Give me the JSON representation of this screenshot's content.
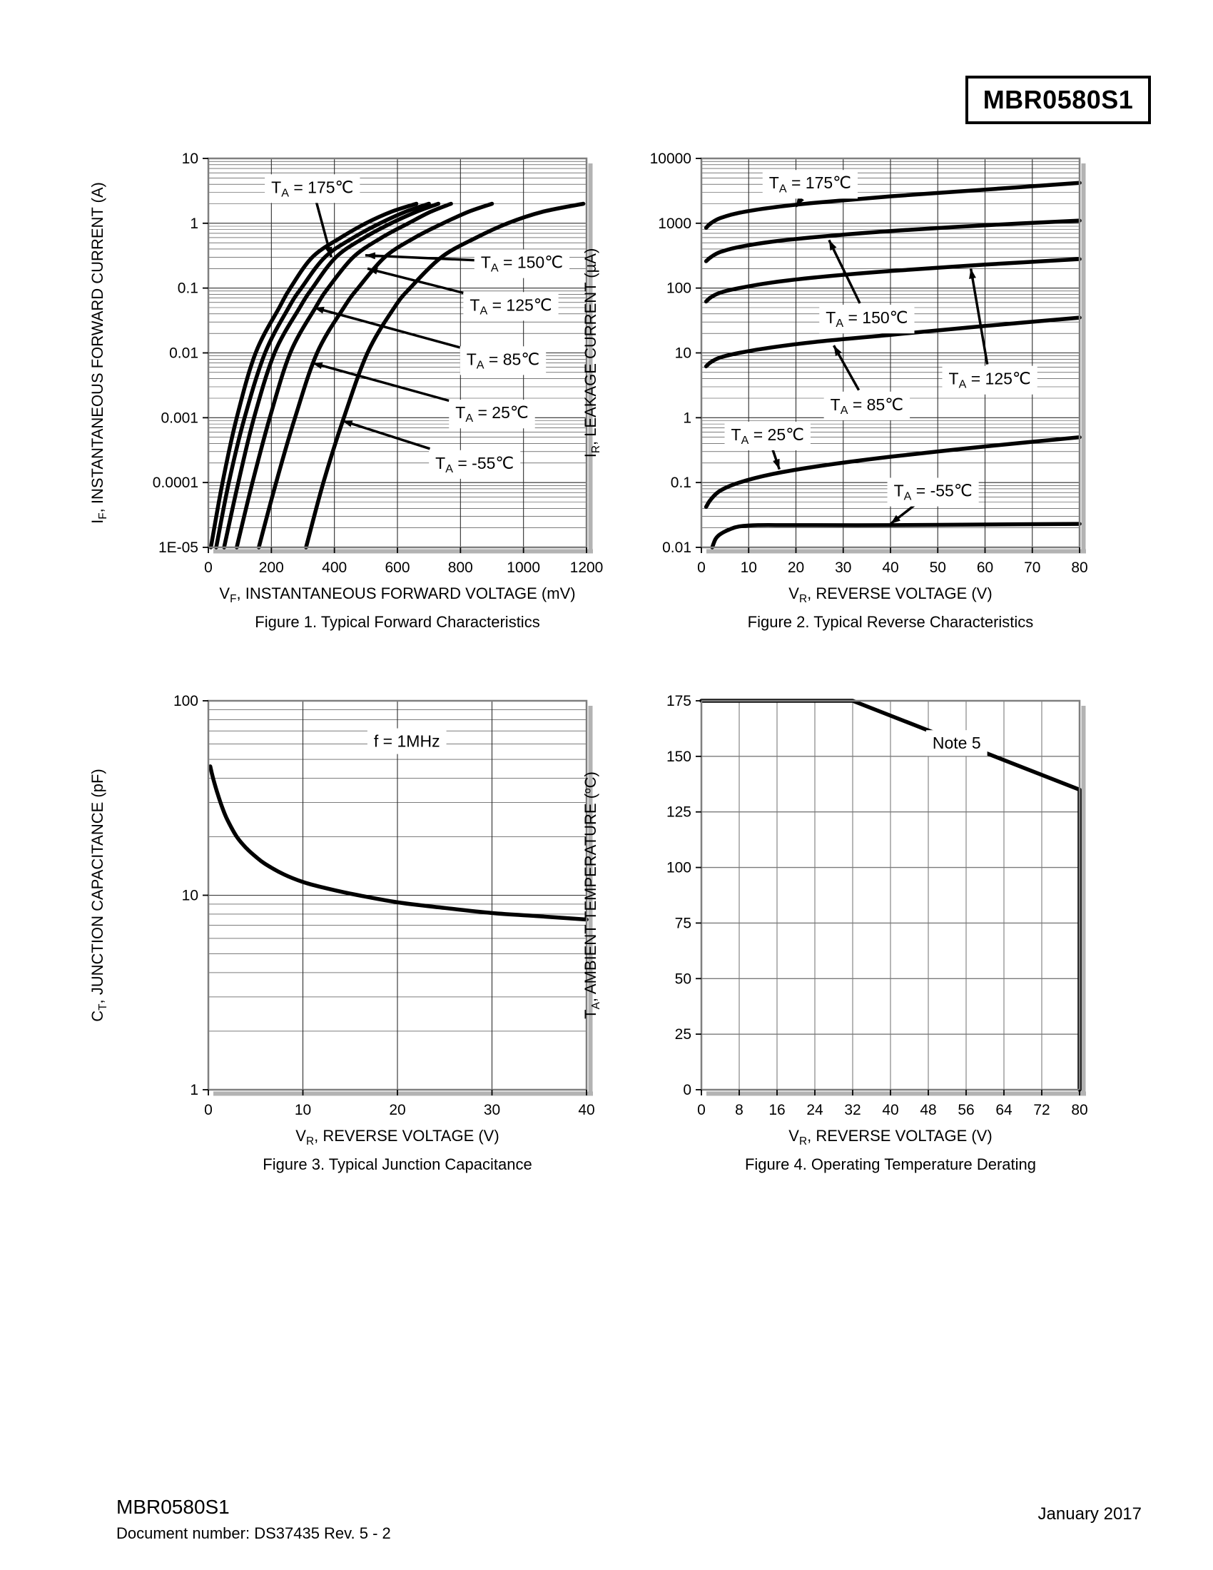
{
  "page": {
    "title_box": "MBR0580S1",
    "footer": {
      "part_number": "MBR0580S1",
      "document_line": "Document number: DS37435  Rev. 5 - 2",
      "date": "January 2017"
    }
  },
  "chart_data": [
    {
      "id": "figure-1",
      "type": "line",
      "title": "Figure 1. Typical Forward Characteristics",
      "xlabel": "V~F~, INSTANTANEOUS FORWARD VOLTAGE (mV)",
      "ylabel": "I~F~, INSTANTANEOUS FORWARD CURRENT (A)",
      "x": {
        "scale": "linear",
        "min": 0,
        "max": 1200,
        "ticks": [
          0,
          200,
          400,
          600,
          800,
          1000,
          1200
        ]
      },
      "y": {
        "scale": "log",
        "min": 1e-05,
        "max": 10,
        "tick_labels": [
          "10",
          "1",
          "0.1",
          "0.01",
          "0.001",
          "0.0001",
          "1E-05"
        ]
      },
      "grid": {
        "color": "#2e2e2e",
        "style": "log-minor"
      },
      "series": [
        {
          "name": "TA = 175C",
          "points": [
            [
              8,
              1e-05
            ],
            [
              45,
              0.0001
            ],
            [
              90,
              0.001
            ],
            [
              150,
              0.01
            ],
            [
              225,
              0.05
            ],
            [
              260,
              0.1
            ],
            [
              330,
              0.3
            ],
            [
              420,
              0.6
            ],
            [
              500,
              1
            ],
            [
              580,
              1.5
            ],
            [
              660,
              2
            ]
          ]
        },
        {
          "name": "TA = 150C",
          "points": [
            [
              25,
              1e-05
            ],
            [
              65,
              0.0001
            ],
            [
              115,
              0.001
            ],
            [
              180,
              0.01
            ],
            [
              255,
              0.05
            ],
            [
              295,
              0.1
            ],
            [
              370,
              0.3
            ],
            [
              460,
              0.6
            ],
            [
              545,
              1
            ],
            [
              625,
              1.5
            ],
            [
              700,
              2
            ]
          ]
        },
        {
          "name": "TA = 125C",
          "points": [
            [
              50,
              1e-05
            ],
            [
              95,
              0.0001
            ],
            [
              145,
              0.001
            ],
            [
              210,
              0.01
            ],
            [
              290,
              0.05
            ],
            [
              330,
              0.1
            ],
            [
              405,
              0.3
            ],
            [
              495,
              0.6
            ],
            [
              580,
              1
            ],
            [
              660,
              1.5
            ],
            [
              730,
              2
            ]
          ]
        },
        {
          "name": "TA = 85C",
          "points": [
            [
              90,
              1e-05
            ],
            [
              140,
              0.0001
            ],
            [
              195,
              0.001
            ],
            [
              260,
              0.01
            ],
            [
              340,
              0.05
            ],
            [
              380,
              0.1
            ],
            [
              460,
              0.3
            ],
            [
              550,
              0.6
            ],
            [
              635,
              1
            ],
            [
              705,
              1.5
            ],
            [
              770,
              2
            ]
          ]
        },
        {
          "name": "TA = 25C",
          "points": [
            [
              160,
              1e-05
            ],
            [
              215,
              0.0001
            ],
            [
              275,
              0.001
            ],
            [
              345,
              0.01
            ],
            [
              430,
              0.05
            ],
            [
              475,
              0.1
            ],
            [
              560,
              0.3
            ],
            [
              655,
              0.6
            ],
            [
              745,
              1
            ],
            [
              825,
              1.5
            ],
            [
              900,
              2
            ]
          ]
        },
        {
          "name": "TA = -55C",
          "points": [
            [
              310,
              1e-05
            ],
            [
              365,
              0.0001
            ],
            [
              430,
              0.001
            ],
            [
              505,
              0.01
            ],
            [
              590,
              0.05
            ],
            [
              640,
              0.1
            ],
            [
              740,
              0.3
            ],
            [
              850,
              0.6
            ],
            [
              950,
              1
            ],
            [
              1060,
              1.5
            ],
            [
              1190,
              2
            ]
          ]
        }
      ],
      "annotations": [
        {
          "text": "T~A~ = 175℃",
          "at": [
            330,
            3.6
          ],
          "target": [
            390,
            0.3
          ]
        },
        {
          "text": "T~A~ = 150℃",
          "at": [
            995,
            0.25
          ],
          "target": [
            498,
            0.32
          ]
        },
        {
          "text": "T~A~ = 125℃",
          "at": [
            960,
            0.055
          ],
          "target": [
            505,
            0.2
          ]
        },
        {
          "text": "T~A~ = 85℃",
          "at": [
            935,
            0.008
          ],
          "target": [
            335,
            0.05
          ]
        },
        {
          "text": "T~A~ = 25℃",
          "at": [
            900,
            0.0012
          ],
          "target": [
            330,
            0.007
          ]
        },
        {
          "text": "T~A~ = -55℃",
          "at": [
            845,
            0.0002
          ],
          "target": [
            425,
            0.0009
          ]
        }
      ]
    },
    {
      "id": "figure-2",
      "type": "line",
      "title": "Figure 2. Typical Reverse Characteristics",
      "xlabel": "V~R~, REVERSE VOLTAGE (V)",
      "ylabel": "I~R~, LEAKAGE CURRENT (µA)",
      "x": {
        "scale": "linear",
        "min": 0,
        "max": 80,
        "ticks": [
          0,
          10,
          20,
          30,
          40,
          50,
          60,
          70,
          80
        ]
      },
      "y": {
        "scale": "log",
        "min": 0.01,
        "max": 10000,
        "tick_labels": [
          "10000",
          "1000",
          "100",
          "10",
          "1",
          "0.1",
          "0.01"
        ]
      },
      "grid": {
        "color": "#2e2e2e",
        "style": "log-minor"
      },
      "series": [
        {
          "name": "TA = 175C",
          "points": [
            [
              1,
              850
            ],
            [
              2,
              1000
            ],
            [
              4,
              1200
            ],
            [
              8,
              1450
            ],
            [
              15,
              1750
            ],
            [
              25,
              2100
            ],
            [
              40,
              2600
            ],
            [
              60,
              3300
            ],
            [
              80,
              4200
            ]
          ]
        },
        {
          "name": "TA = 150C",
          "points": [
            [
              1,
              260
            ],
            [
              2,
              300
            ],
            [
              4,
              360
            ],
            [
              8,
              430
            ],
            [
              15,
              520
            ],
            [
              25,
              620
            ],
            [
              40,
              760
            ],
            [
              60,
              930
            ],
            [
              80,
              1100
            ]
          ]
        },
        {
          "name": "TA = 125C",
          "points": [
            [
              1,
              62
            ],
            [
              2,
              72
            ],
            [
              4,
              85
            ],
            [
              8,
              100
            ],
            [
              15,
              122
            ],
            [
              25,
              148
            ],
            [
              40,
              183
            ],
            [
              60,
              230
            ],
            [
              80,
              280
            ]
          ]
        },
        {
          "name": "TA = 85C",
          "points": [
            [
              1,
              6.2
            ],
            [
              2,
              7.2
            ],
            [
              4,
              8.5
            ],
            [
              8,
              10
            ],
            [
              15,
              12.2
            ],
            [
              25,
              15
            ],
            [
              40,
              19
            ],
            [
              60,
              26
            ],
            [
              80,
              35
            ]
          ]
        },
        {
          "name": "TA = 25C",
          "points": [
            [
              1,
              0.042
            ],
            [
              2,
              0.055
            ],
            [
              4,
              0.075
            ],
            [
              8,
              0.1
            ],
            [
              15,
              0.135
            ],
            [
              25,
              0.18
            ],
            [
              40,
              0.25
            ],
            [
              60,
              0.36
            ],
            [
              80,
              0.5
            ]
          ]
        },
        {
          "name": "TA = -55C",
          "points": [
            [
              2.3,
              0.01
            ],
            [
              3,
              0.0135
            ],
            [
              4,
              0.016
            ],
            [
              6,
              0.019
            ],
            [
              8,
              0.021
            ],
            [
              12,
              0.022
            ],
            [
              20,
              0.022
            ],
            [
              40,
              0.022
            ],
            [
              60,
              0.0225
            ],
            [
              80,
              0.023
            ]
          ]
        }
      ],
      "annotations": [
        {
          "text": "T~A~ = 175℃",
          "at": [
            23,
            4200
          ],
          "target": [
            20,
            1800
          ]
        },
        {
          "text": "T~A~ = 150℃",
          "at": [
            35,
            35
          ],
          "target": [
            27,
            550
          ]
        },
        {
          "text": "T~A~ = 125℃",
          "at": [
            61,
            4
          ],
          "target": [
            57,
            200
          ]
        },
        {
          "text": "T~A~ = 85℃",
          "at": [
            35,
            1.6
          ],
          "target": [
            28,
            13
          ]
        },
        {
          "text": "T~A~ = 25℃",
          "at": [
            14,
            0.55
          ],
          "target": [
            16.5,
            0.16
          ]
        },
        {
          "text": "T~A~ = -55℃",
          "at": [
            49,
            0.075
          ],
          "target": [
            40,
            0.023
          ]
        }
      ]
    },
    {
      "id": "figure-3",
      "type": "line",
      "title": "Figure 3. Typical Junction Capacitance",
      "xlabel": "V~R~, REVERSE VOLTAGE (V)",
      "ylabel": "C~T~, JUNCTION CAPACITANCE (pF)",
      "x": {
        "scale": "linear",
        "min": 0,
        "max": 40,
        "ticks": [
          0,
          10,
          20,
          30,
          40
        ]
      },
      "y": {
        "scale": "log",
        "min": 1,
        "max": 100,
        "tick_labels": [
          "100",
          "10",
          "1"
        ]
      },
      "grid": {
        "color": "#2e2e2e",
        "style": "log-minor"
      },
      "series": [
        {
          "name": "CT vs VR",
          "points": [
            [
              0.2,
              46
            ],
            [
              0.5,
              40
            ],
            [
              1,
              33
            ],
            [
              1.5,
              28
            ],
            [
              2,
              24.5
            ],
            [
              3,
              20
            ],
            [
              4,
              17.5
            ],
            [
              5,
              15.8
            ],
            [
              6,
              14.5
            ],
            [
              8,
              12.8
            ],
            [
              10,
              11.7
            ],
            [
              12,
              11
            ],
            [
              15,
              10.2
            ],
            [
              20,
              9.2
            ],
            [
              25,
              8.6
            ],
            [
              30,
              8.1
            ],
            [
              35,
              7.8
            ],
            [
              40,
              7.5
            ]
          ]
        }
      ],
      "annotations": [
        {
          "text": "f = 1MHz",
          "at": [
            21,
            62
          ]
        }
      ]
    },
    {
      "id": "figure-4",
      "type": "line",
      "title": "Figure 4. Operating Temperature Derating",
      "xlabel": "V~R~, REVERSE VOLTAGE (V)",
      "ylabel": "T~A~, AMBIENT TEMPERATURE (^o^C)",
      "x": {
        "scale": "linear",
        "min": 0,
        "max": 80,
        "ticks": [
          0,
          8,
          16,
          24,
          32,
          40,
          48,
          56,
          64,
          72,
          80
        ]
      },
      "y": {
        "scale": "linear",
        "min": 0,
        "max": 175,
        "ticks": [
          175,
          150,
          125,
          100,
          75,
          50,
          25,
          0
        ]
      },
      "grid": {
        "color": "#7a7a7a",
        "style": "linear"
      },
      "series": [
        {
          "name": "derating limit",
          "smooth": false,
          "points": [
            [
              0,
              175
            ],
            [
              32,
              175
            ],
            [
              80,
              135
            ],
            [
              80,
              0
            ]
          ]
        }
      ],
      "annotations": [
        {
          "text": "Note 5",
          "at": [
            54,
            156
          ]
        }
      ]
    }
  ]
}
